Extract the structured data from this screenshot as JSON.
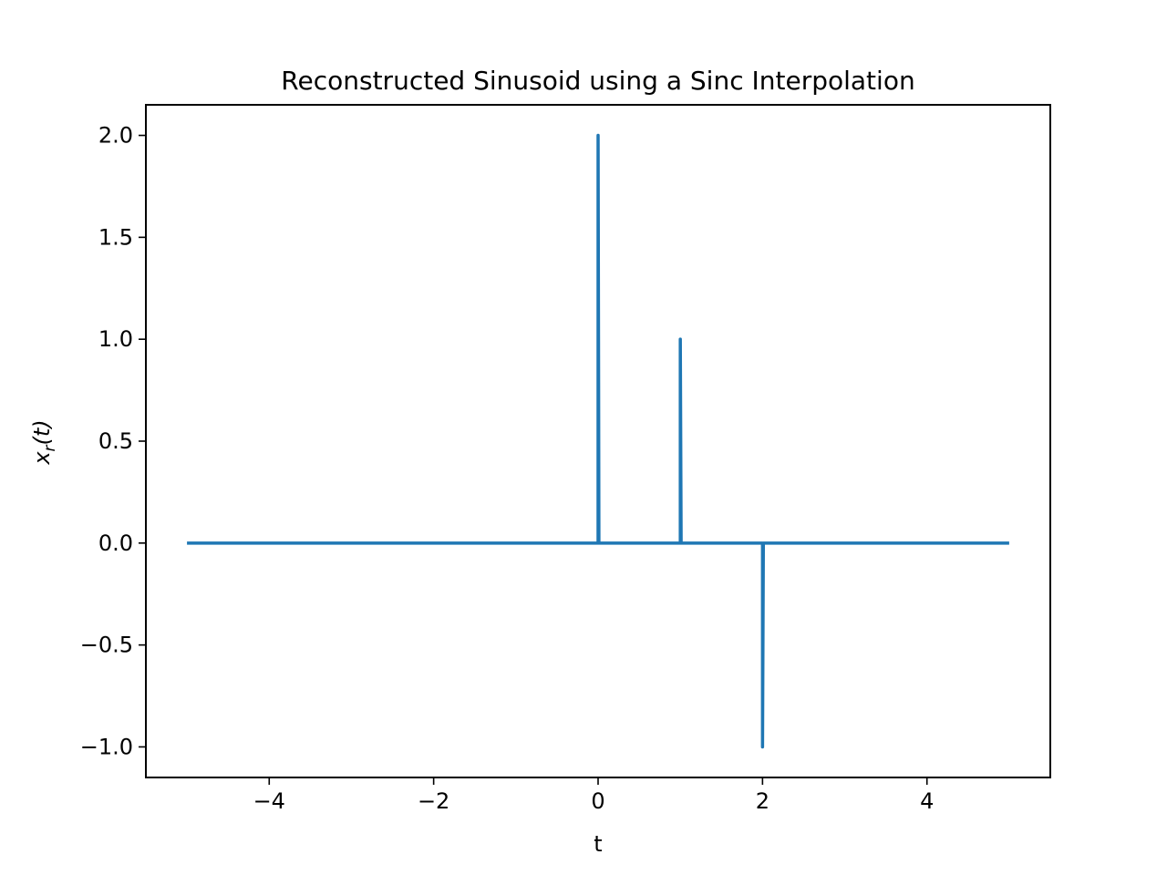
{
  "chart_data": {
    "type": "line",
    "title": "Reconstructed Sinusoid using a Sinc Interpolation",
    "xlabel": "t",
    "ylabel": "x_r(t)",
    "xlim": [
      -5.5,
      5.5
    ],
    "ylim": [
      -1.15,
      2.15
    ],
    "xticks": [
      -4,
      -2,
      0,
      2,
      4
    ],
    "xtick_labels": [
      "−4",
      "−2",
      "0",
      "2",
      "4"
    ],
    "yticks": [
      2.0,
      1.5,
      1.0,
      0.5,
      0.0,
      -0.5,
      -1.0
    ],
    "ytick_labels": [
      "2.0",
      "1.5",
      "1.0",
      "0.5",
      "0.0",
      "−0.5",
      "−1.0"
    ],
    "grid": false,
    "series": [
      {
        "color": "#1f77b4",
        "x": [
          -5,
          0,
          0,
          0.01,
          1,
          1,
          1.01,
          2,
          2,
          2.01,
          5
        ],
        "y": [
          0,
          0,
          2,
          0,
          0,
          1,
          0,
          0,
          -1,
          0,
          0
        ]
      }
    ]
  }
}
